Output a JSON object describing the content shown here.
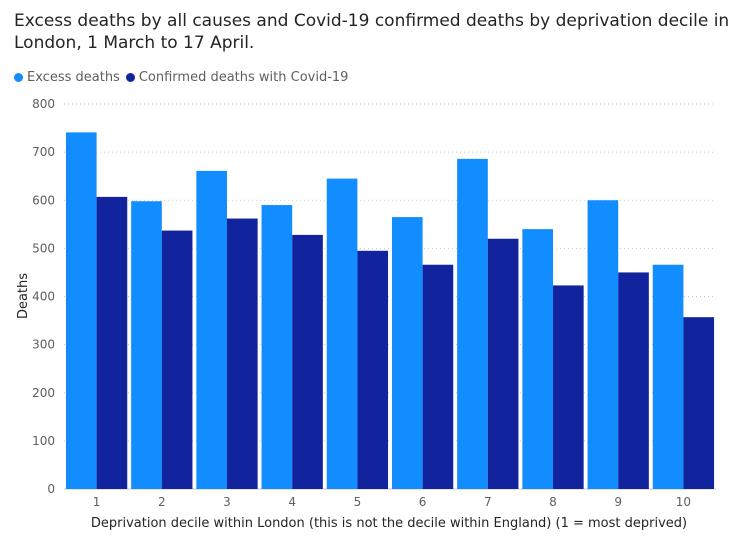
{
  "chart_data": {
    "type": "bar",
    "title": "Excess deaths by all causes and Covid-19 confirmed deaths by deprivation decile in London, 1 March to 17 April.",
    "xlabel": "Deprivation decile within London (this is not the decile within England) (1 = most deprived)",
    "ylabel": "Deaths",
    "ylim": [
      0,
      800
    ],
    "yticks": [
      0,
      100,
      200,
      300,
      400,
      500,
      600,
      700,
      800
    ],
    "categories": [
      "1",
      "2",
      "3",
      "4",
      "5",
      "6",
      "7",
      "8",
      "9",
      "10"
    ],
    "series": [
      {
        "name": "Excess deaths",
        "color": "#118DFF",
        "values": [
          741,
          598,
          661,
          590,
          645,
          565,
          686,
          540,
          600,
          466
        ]
      },
      {
        "name": "Confirmed deaths with Covid-19",
        "color": "#12239E",
        "values": [
          607,
          537,
          562,
          528,
          495,
          466,
          520,
          423,
          450,
          357
        ]
      }
    ],
    "grid": true,
    "legend": "top-left"
  }
}
